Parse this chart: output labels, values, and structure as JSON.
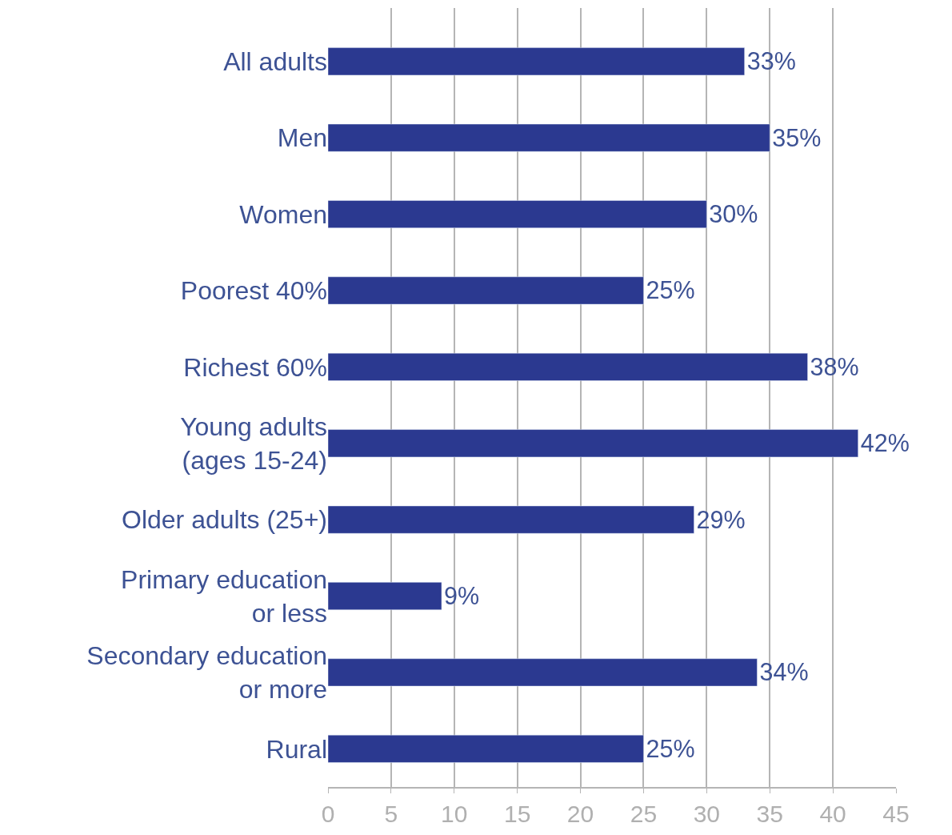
{
  "chart_data": {
    "type": "bar",
    "orientation": "horizontal",
    "categories": [
      "All adults",
      "Men",
      "Women",
      "Poorest 40%",
      "Richest 60%",
      "Young adults\n(ages 15-24)",
      "Older adults (25+)",
      "Primary education\nor less",
      "Secondary education\nor more",
      "Rural"
    ],
    "values": [
      33,
      35,
      30,
      25,
      38,
      42,
      29,
      9,
      34,
      25
    ],
    "value_labels": [
      "33%",
      "35%",
      "30%",
      "25%",
      "38%",
      "42%",
      "29%",
      "9%",
      "34%",
      "25%"
    ],
    "color": "#2b3990",
    "xlim": [
      0,
      45
    ],
    "xticks": [
      0,
      5,
      10,
      15,
      20,
      25,
      30,
      35,
      40,
      45
    ],
    "grid": "x",
    "legend": false
  }
}
